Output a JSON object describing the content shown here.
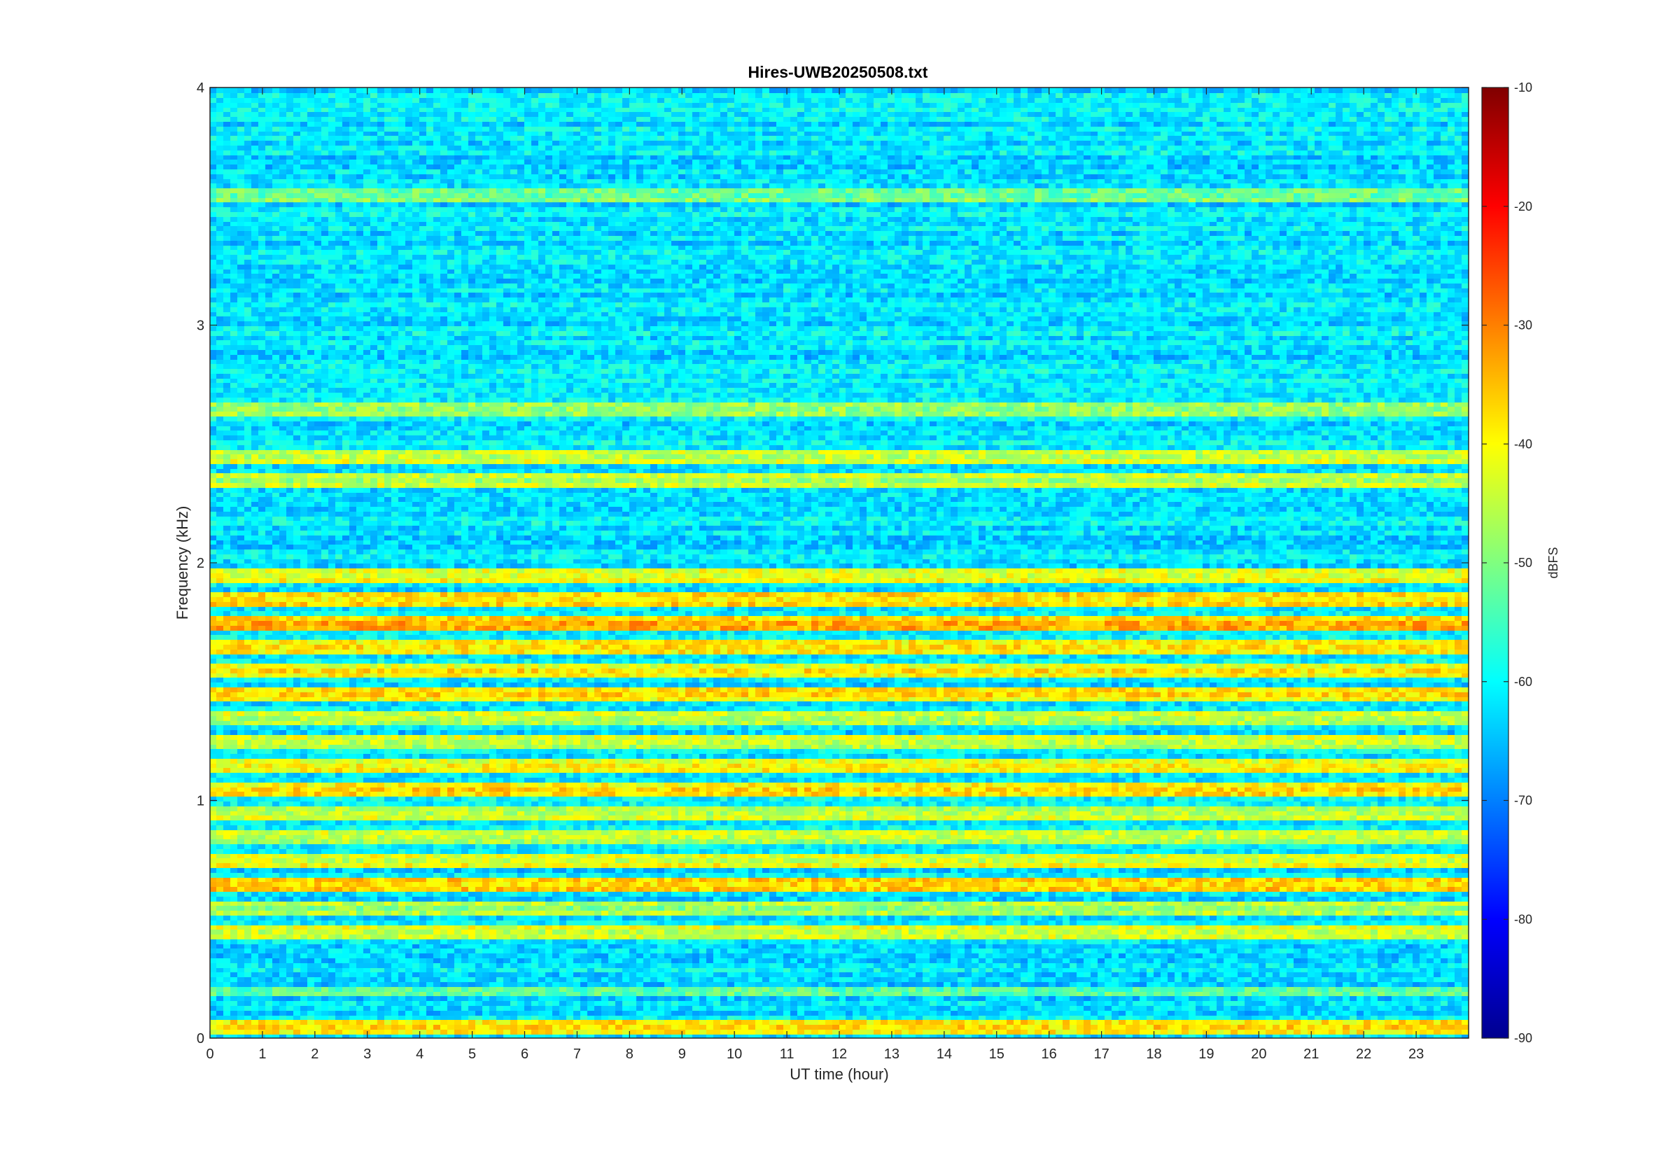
{
  "chart_data": {
    "type": "heatmap",
    "title": "Hires-UWB20250508.txt",
    "xlabel": "UT time (hour)",
    "ylabel": "Frequency (kHz)",
    "xlim": [
      0,
      24
    ],
    "ylim": [
      0,
      4
    ],
    "x_ticks": [
      "0",
      "1",
      "2",
      "3",
      "4",
      "5",
      "6",
      "7",
      "8",
      "9",
      "10",
      "11",
      "12",
      "13",
      "14",
      "15",
      "16",
      "17",
      "18",
      "19",
      "20",
      "21",
      "22",
      "23"
    ],
    "y_ticks": [
      "0",
      "1",
      "2",
      "3",
      "4"
    ],
    "colorbar": {
      "label": "dBFS",
      "colormap": "jet",
      "range": [
        -90,
        -10
      ],
      "ticks": [
        "-90",
        "-80",
        "-70",
        "-60",
        "-50",
        "-40",
        "-30",
        "-20",
        "-10"
      ]
    },
    "bands_khz": [
      {
        "f": 0.05,
        "level": -38
      },
      {
        "f": 0.2,
        "level": -52
      },
      {
        "f": 0.45,
        "level": -44
      },
      {
        "f": 0.55,
        "level": -47
      },
      {
        "f": 0.65,
        "level": -38
      },
      {
        "f": 0.75,
        "level": -42
      },
      {
        "f": 0.85,
        "level": -46
      },
      {
        "f": 0.95,
        "level": -44
      },
      {
        "f": 1.05,
        "level": -39
      },
      {
        "f": 1.15,
        "level": -40
      },
      {
        "f": 1.25,
        "level": -45
      },
      {
        "f": 1.35,
        "level": -44
      },
      {
        "f": 1.45,
        "level": -39
      },
      {
        "f": 1.55,
        "level": -40
      },
      {
        "f": 1.65,
        "level": -38
      },
      {
        "f": 1.75,
        "level": -35
      },
      {
        "f": 1.85,
        "level": -39
      },
      {
        "f": 1.95,
        "level": -41
      },
      {
        "f": 2.35,
        "level": -45
      },
      {
        "f": 2.45,
        "level": -43
      },
      {
        "f": 2.65,
        "level": -50
      },
      {
        "f": 3.55,
        "level": -50
      }
    ],
    "background_level": -62,
    "grid": false
  }
}
